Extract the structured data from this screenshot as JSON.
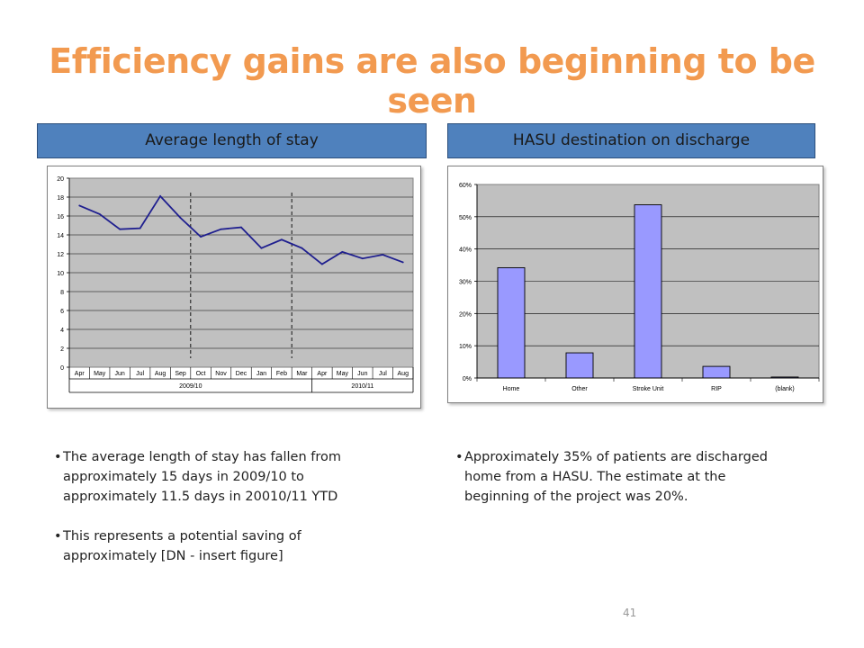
{
  "slide": {
    "title": "Efficiency gains are also beginning to be seen",
    "page_number": "41",
    "left_header": "Average length of stay",
    "right_header": "HASU destination on discharge",
    "left_bullets": [
      "The average length of stay has fallen from\napproximately 15 days in 2009/10 to\napproximately 11.5 days in 20010/11 YTD",
      "This represents a potential saving of\napproximately [DN - insert figure]"
    ],
    "right_bullets": [
      "Approximately 35% of patients are discharged\nhome from a HASU.  The estimate at the\nbeginning of the project was 20%."
    ],
    "title_color": "#f29a50",
    "header_color": "#4f81bd"
  },
  "chart_data": [
    {
      "type": "line",
      "x": [
        "Apr",
        "May",
        "Jun",
        "Jul",
        "Aug",
        "Sep",
        "Oct",
        "Nov",
        "Dec",
        "Jan",
        "Feb",
        "Mar",
        "Apr",
        "May",
        "Jun",
        "Jul",
        "Aug"
      ],
      "values": [
        17.1,
        16.2,
        14.6,
        14.7,
        18.1,
        15.8,
        13.8,
        14.6,
        14.8,
        12.6,
        13.5,
        12.6,
        10.9,
        12.2,
        11.5,
        11.9,
        11.1
      ],
      "groups": [
        {
          "label": "2009/10",
          "span": 12
        },
        {
          "label": "2010/11",
          "span": 5
        }
      ],
      "yticks": [
        "0",
        "2",
        "4",
        "6",
        "8",
        "10",
        "12",
        "14",
        "16",
        "18",
        "20"
      ],
      "ylim": [
        0,
        20
      ],
      "dashed_markers_after": [
        "Sep",
        "Feb"
      ],
      "line_color": "#1f1f8f",
      "plot_bg": "#c0c0c0"
    },
    {
      "type": "bar",
      "categories": [
        "Home",
        "Other",
        "Stroke Unit",
        "RIP",
        "(blank)"
      ],
      "values": [
        34.2,
        7.8,
        53.7,
        3.6,
        0.3
      ],
      "yticks": [
        "0%",
        "10%",
        "20%",
        "30%",
        "40%",
        "50%",
        "60%"
      ],
      "ylim": [
        0,
        60
      ],
      "bar_color": "#9999ff",
      "plot_bg": "#c0c0c0"
    }
  ]
}
